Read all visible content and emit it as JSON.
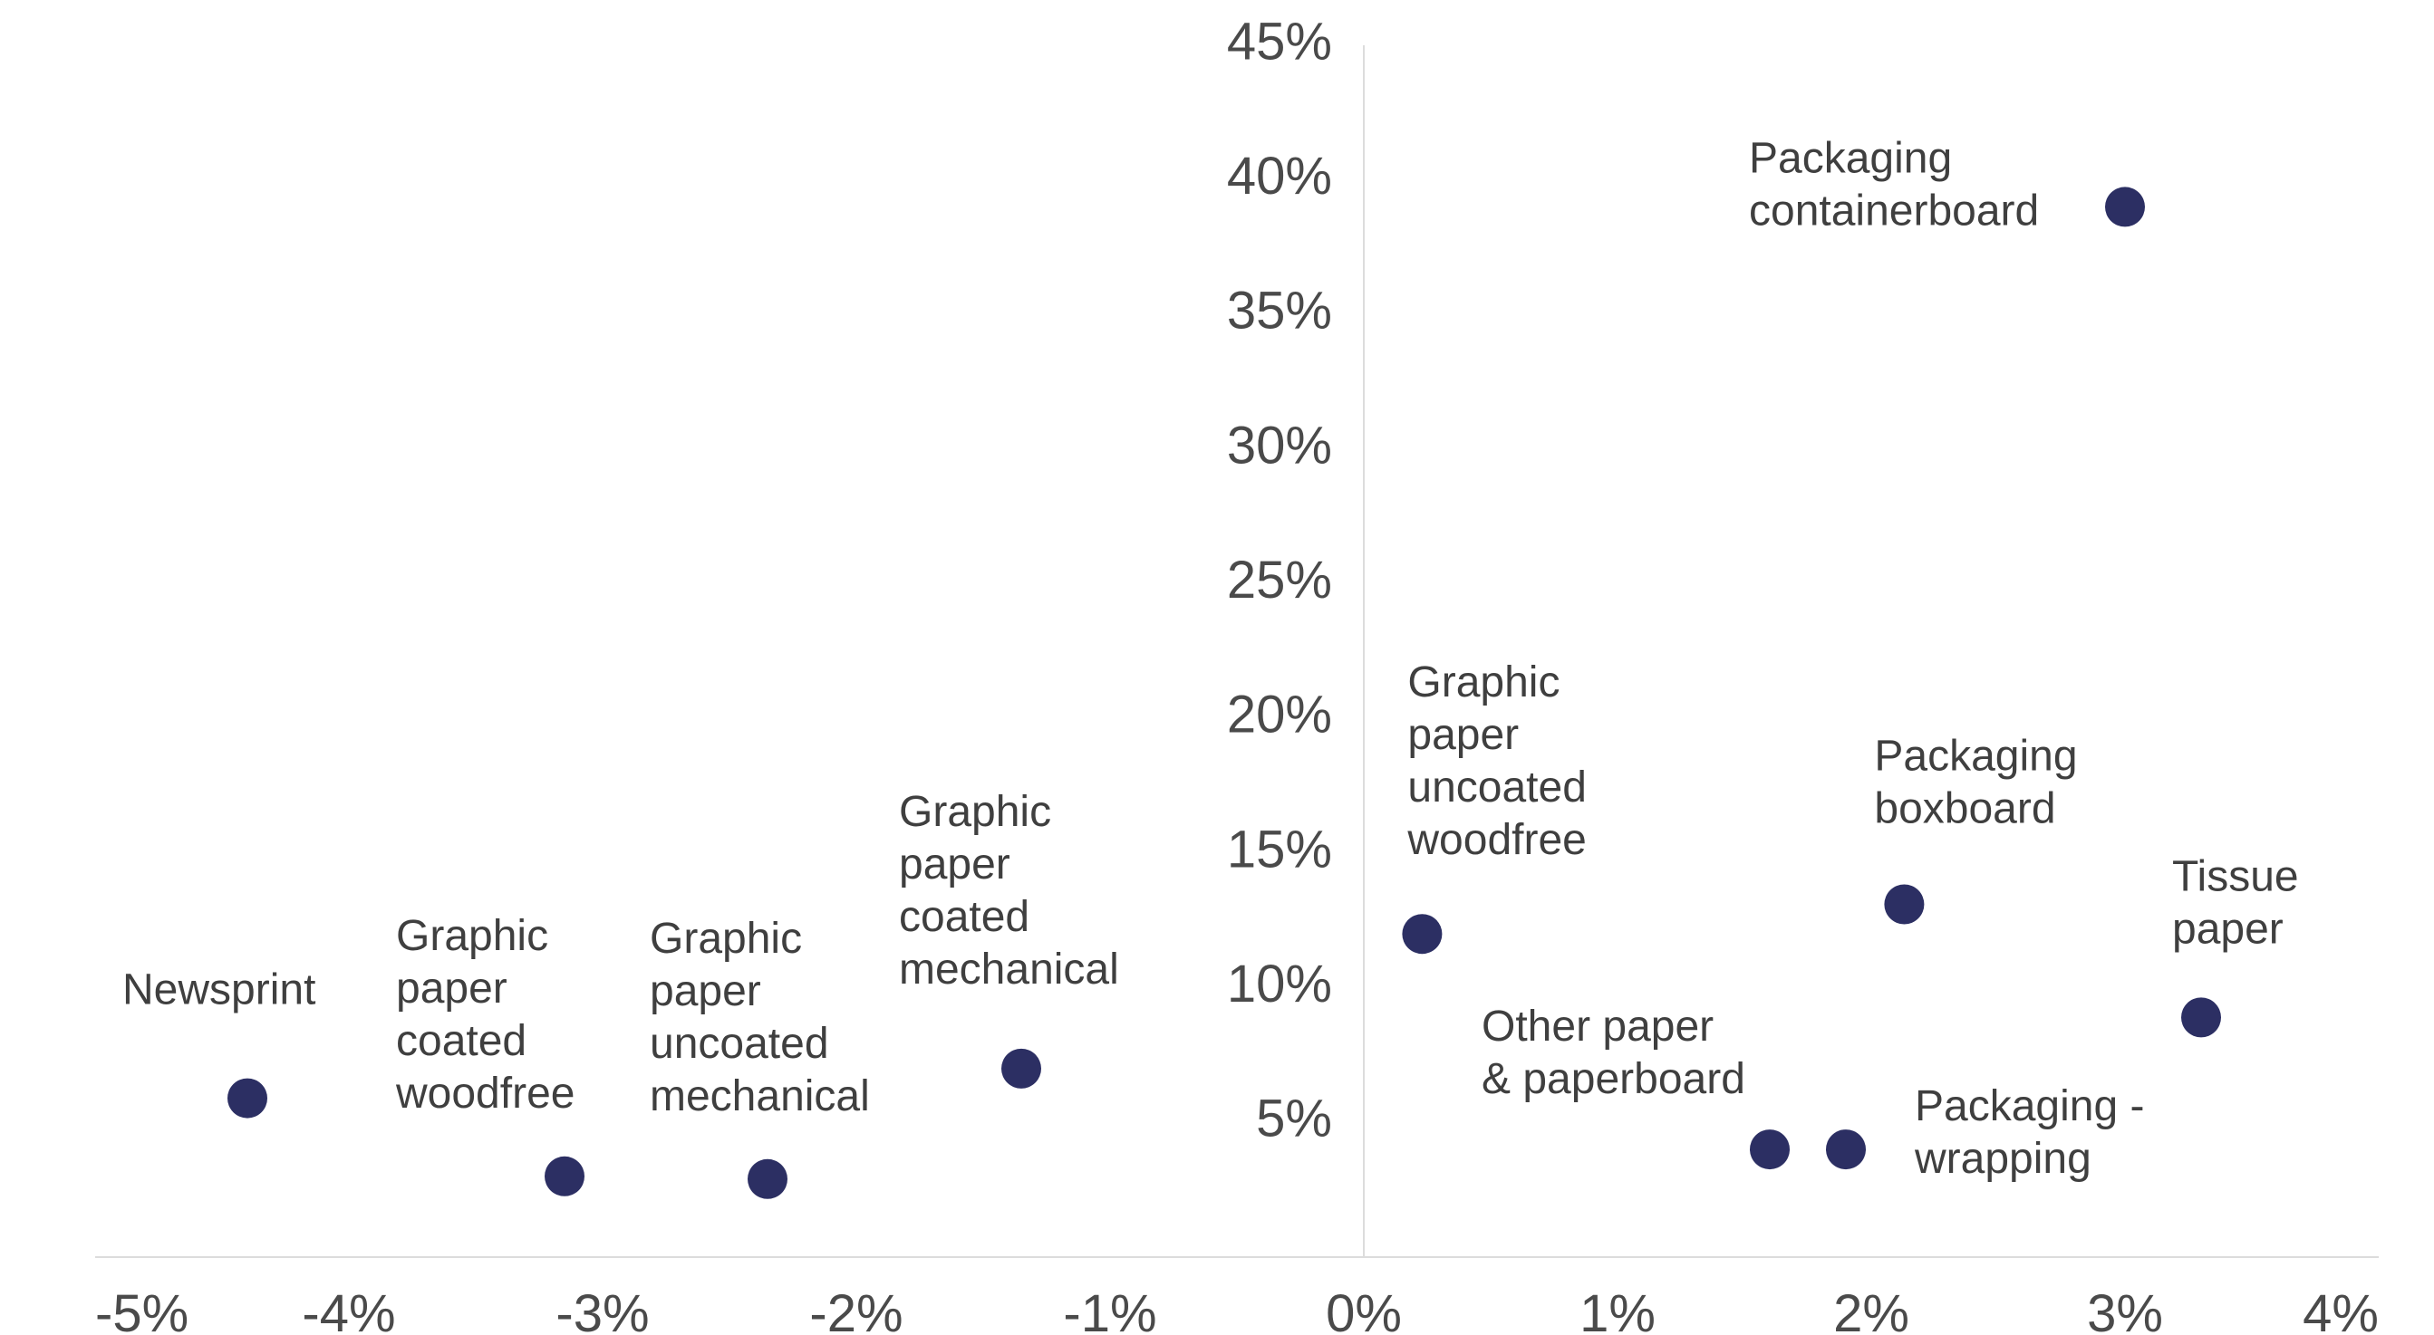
{
  "chart_data": {
    "type": "scatter",
    "title": "",
    "xlabel": "",
    "ylabel": "",
    "xlim": [
      -5,
      4
    ],
    "ylim": [
      0,
      45
    ],
    "x_ticks": [
      -5,
      -4,
      -3,
      -2,
      -1,
      0,
      1,
      2,
      3,
      4
    ],
    "x_tick_labels": [
      "-5%",
      "-4%",
      "-3%",
      "-2%",
      "-1%",
      "0%",
      "1%",
      "2%",
      "3%",
      "4%"
    ],
    "y_ticks": [
      5,
      10,
      15,
      20,
      25,
      30,
      35,
      40,
      45
    ],
    "y_tick_labels": [
      "5%",
      "10%",
      "15%",
      "20%",
      "25%",
      "30%",
      "35%",
      "40%",
      "45%"
    ],
    "grid": false,
    "point_color": "#2c2f63",
    "points": [
      {
        "label": [
          "Newsprint"
        ],
        "x": -4.4,
        "y": 5.9
      },
      {
        "label": [
          "Graphic",
          "paper",
          "coated",
          "woodfree"
        ],
        "x": -3.15,
        "y": 3.0
      },
      {
        "label": [
          "Graphic",
          "paper",
          "uncoated",
          "mechanical"
        ],
        "x": -2.35,
        "y": 2.9
      },
      {
        "label": [
          "Graphic",
          "paper",
          "coated",
          "mechanical"
        ],
        "x": -1.35,
        "y": 7.0
      },
      {
        "label": [
          "Graphic",
          "paper",
          "uncoated",
          "woodfree"
        ],
        "x": 0.23,
        "y": 12.0
      },
      {
        "label": [
          "Other paper",
          "& paperboard"
        ],
        "x": 1.6,
        "y": 4.0
      },
      {
        "label": [
          "Packaging -",
          "wrapping"
        ],
        "x": 1.9,
        "y": 4.0
      },
      {
        "label": [
          "Packaging",
          "boxboard"
        ],
        "x": 2.13,
        "y": 13.1
      },
      {
        "label": [
          "Tissue",
          "paper"
        ],
        "x": 3.3,
        "y": 8.9
      },
      {
        "label": [
          "Packaging",
          "containerboard"
        ],
        "x": 3.0,
        "y": 39.0
      }
    ]
  }
}
